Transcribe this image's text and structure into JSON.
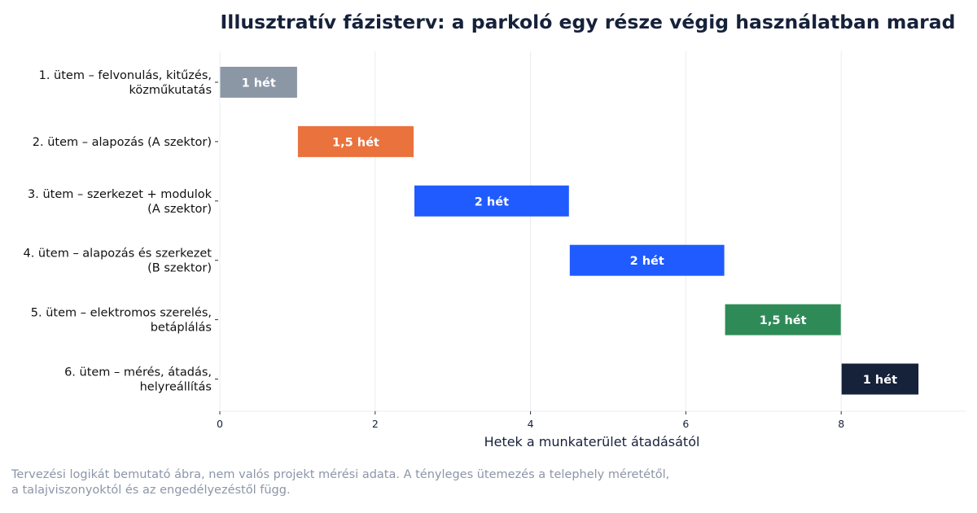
{
  "chart_data": {
    "type": "bar",
    "orientation": "horizontal",
    "title": "Illusztratív fázisterv: a parkoló egy része végig használatban marad",
    "xlabel": "Hetek a munkaterület átadásától",
    "ylabel": "",
    "xlim": [
      0,
      9.6
    ],
    "x_ticks": [
      0,
      2,
      4,
      6,
      8
    ],
    "grid": "vertical",
    "tasks": [
      {
        "label_lines": [
          "1. ütem – felvonulás, kitűzés,",
          "közműkutatás"
        ],
        "start": 0,
        "duration": 1,
        "value_label": "1 hét",
        "color": "#8c97a6"
      },
      {
        "label_lines": [
          "2. ütem – alapozás (A szektor)"
        ],
        "start": 1,
        "duration": 1.5,
        "value_label": "1,5 hét",
        "color": "#ea723d"
      },
      {
        "label_lines": [
          "3. ütem – szerkezet + modulok",
          "(A szektor)"
        ],
        "start": 2.5,
        "duration": 2,
        "value_label": "2 hét",
        "color": "#1f5bff"
      },
      {
        "label_lines": [
          "4. ütem – alapozás és szerkezet",
          "(B szektor)"
        ],
        "start": 4.5,
        "duration": 2,
        "value_label": "2 hét",
        "color": "#1f5bff"
      },
      {
        "label_lines": [
          "5. ütem – elektromos szerelés,",
          "betáplálás"
        ],
        "start": 6.5,
        "duration": 1.5,
        "value_label": "1,5 hét",
        "color": "#2e8b57"
      },
      {
        "label_lines": [
          "6. ütem – mérés, átadás,",
          "helyreállítás"
        ],
        "start": 8,
        "duration": 1,
        "value_label": "1 hét",
        "color": "#16213a"
      }
    ]
  },
  "footnote": {
    "line1": "Tervezési logikát bemutató ábra, nem valós projekt mérési adata. A tényleges ütemezés a telephely méretétől,",
    "line2": "a talajviszonyoktól és az engedélyezéstől függ."
  },
  "colors": {
    "title": "#16213a",
    "axis_text": "#16213a",
    "grid": "#e8ecf1",
    "footnote": "#8c96a8"
  }
}
